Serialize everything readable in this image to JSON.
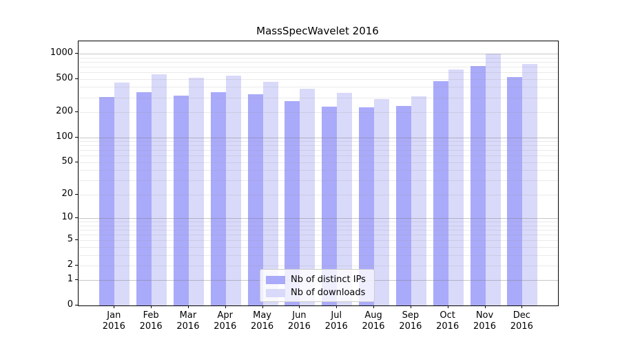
{
  "chart_data": {
    "type": "bar",
    "title": "MassSpecWavelet 2016",
    "x_categories": [
      "Jan",
      "Feb",
      "Mar",
      "Apr",
      "May",
      "Jun",
      "Jul",
      "Aug",
      "Sep",
      "Oct",
      "Nov",
      "Dec"
    ],
    "x_year_label": "2016",
    "series": [
      {
        "name": "Nb of distinct IPs",
        "color": "#aaaafa",
        "values": [
          305,
          348,
          318,
          350,
          330,
          272,
          235,
          227,
          238,
          470,
          718,
          526
        ]
      },
      {
        "name": "Nb of downloads",
        "color": "#d9d9fa",
        "values": [
          450,
          570,
          520,
          545,
          460,
          380,
          340,
          289,
          312,
          648,
          1000,
          760
        ]
      }
    ],
    "y_ticks": [
      0,
      1,
      2,
      5,
      10,
      20,
      50,
      100,
      200,
      500,
      1000
    ],
    "y_scale": "log1p",
    "ylim": [
      0,
      1400
    ],
    "grid": "horizontal, minor log gridlines, drawn over bars",
    "legend_position": "bottom-center"
  }
}
